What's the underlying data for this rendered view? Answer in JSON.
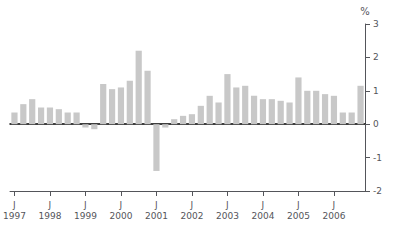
{
  "chart_data": {
    "type": "bar",
    "categories": [
      "J\n1997",
      null,
      null,
      null,
      "J\n1998",
      null,
      null,
      null,
      "J\n1999",
      null,
      null,
      null,
      "J\n2000",
      null,
      null,
      null,
      "J\n2001",
      null,
      null,
      null,
      "J\n2002",
      null,
      null,
      null,
      "J\n2003",
      null,
      null,
      null,
      "J\n2004",
      null,
      null,
      null,
      "J\n2005",
      null,
      null,
      null,
      "J\n2006",
      null,
      null,
      null
    ],
    "values": [
      0.35,
      0.6,
      0.75,
      0.5,
      0.5,
      0.45,
      0.35,
      0.35,
      -0.1,
      -0.15,
      1.2,
      1.05,
      1.1,
      1.3,
      2.2,
      1.6,
      -1.4,
      -0.1,
      0.15,
      0.25,
      0.3,
      0.55,
      0.85,
      0.65,
      1.5,
      1.1,
      1.15,
      0.85,
      0.75,
      0.75,
      0.7,
      0.65,
      1.4,
      1.0,
      1.0,
      0.9,
      0.85,
      0.35,
      0.35,
      1.15
    ],
    "color": "#c8c8c8",
    "ylabel": "%",
    "ylim": [
      -2,
      3
    ],
    "yticks": [
      -2,
      -1,
      0,
      1,
      2,
      3
    ],
    "grid": false
  }
}
